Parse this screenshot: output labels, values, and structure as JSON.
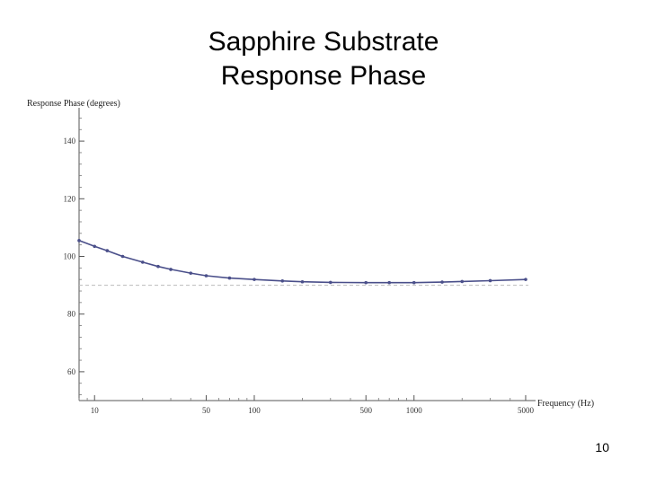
{
  "slide": {
    "title_line1": "Sapphire Substrate",
    "title_line2": "Response Phase",
    "page_number": "10"
  },
  "chart_data": {
    "type": "line",
    "title": "",
    "xlabel": "Frequency (Hz)",
    "ylabel": "Response Phase (degrees)",
    "x_scale": "log",
    "xlim": [
      8,
      5200
    ],
    "ylim": [
      50,
      150
    ],
    "x_ticks": [
      10,
      50,
      100,
      500,
      1000,
      5000
    ],
    "x_tick_labels": [
      "10",
      "50",
      "100",
      "500",
      "1000",
      "5000"
    ],
    "y_ticks": [
      60,
      80,
      100,
      120,
      140
    ],
    "y_tick_labels": [
      "60",
      "80",
      "100",
      "120",
      "140"
    ],
    "reference_line_y": 90,
    "series_color": "#4a4f8a",
    "reference_color": "#bbbbbb",
    "series": [
      {
        "x": [
          8,
          10,
          12,
          15,
          20,
          25,
          30,
          40,
          50,
          70,
          100,
          150,
          200,
          300,
          500,
          700,
          1000,
          1500,
          2000,
          3000,
          5000
        ],
        "y": [
          105.5,
          103.5,
          102,
          100,
          98,
          96.5,
          95.5,
          94.2,
          93.3,
          92.5,
          92,
          91.5,
          91.2,
          91,
          90.9,
          90.9,
          90.9,
          91.1,
          91.3,
          91.6,
          92
        ]
      }
    ]
  }
}
